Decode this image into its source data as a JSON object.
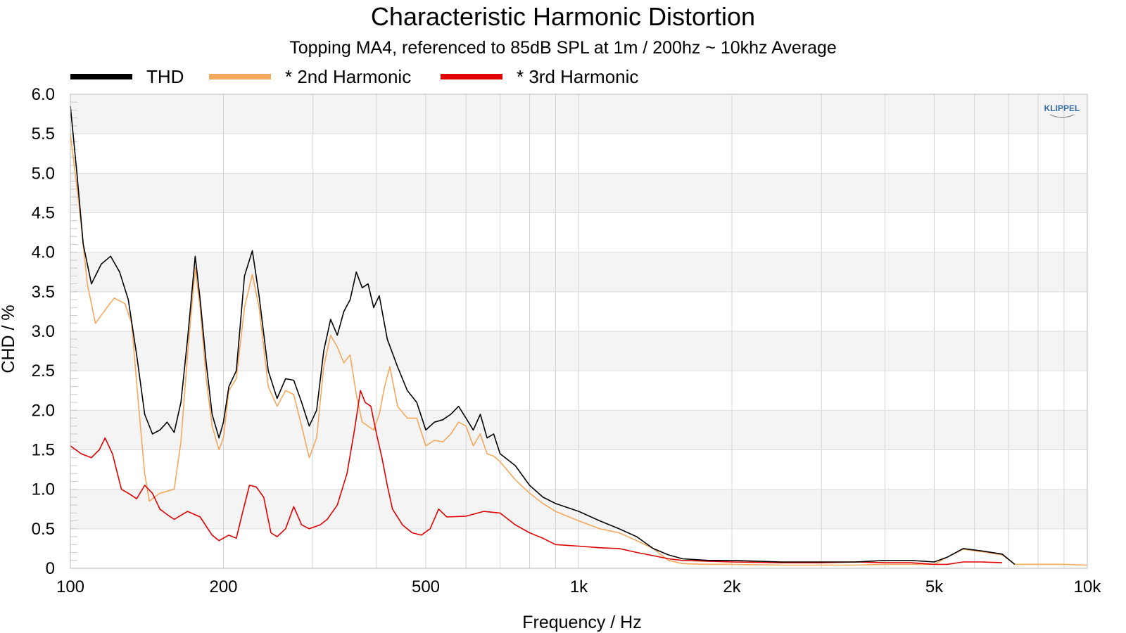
{
  "chart_data": {
    "type": "line",
    "title": "Characteristic Harmonic Distortion",
    "subtitle": "Topping MA4, referenced to 85dB SPL at 1m / 200hz ~ 10khz Average",
    "xlabel": "Frequency / Hz",
    "ylabel": "CHD / %",
    "x_scale": "log",
    "xlim": [
      100,
      10000
    ],
    "ylim": [
      0,
      6.0
    ],
    "x_ticks": [
      {
        "value": 100,
        "label": "100"
      },
      {
        "value": 200,
        "label": "200"
      },
      {
        "value": 500,
        "label": "500"
      },
      {
        "value": 1000,
        "label": "1k"
      },
      {
        "value": 2000,
        "label": "2k"
      },
      {
        "value": 5000,
        "label": "5k"
      },
      {
        "value": 10000,
        "label": "10k"
      }
    ],
    "y_ticks": [
      {
        "value": 0,
        "label": "0"
      },
      {
        "value": 0.5,
        "label": "0.5"
      },
      {
        "value": 1.0,
        "label": "1.0"
      },
      {
        "value": 1.5,
        "label": "1.5"
      },
      {
        "value": 2.0,
        "label": "2.0"
      },
      {
        "value": 2.5,
        "label": "2.5"
      },
      {
        "value": 3.0,
        "label": "3.0"
      },
      {
        "value": 3.5,
        "label": "3.5"
      },
      {
        "value": 4.0,
        "label": "4.0"
      },
      {
        "value": 4.5,
        "label": "4.5"
      },
      {
        "value": 5.0,
        "label": "5.0"
      },
      {
        "value": 5.5,
        "label": "5.5"
      },
      {
        "value": 6.0,
        "label": "6.0"
      }
    ],
    "grid": true,
    "legend_position": "top-left",
    "badge": "KLIPPEL",
    "series": [
      {
        "name": "THD",
        "color": "#000000",
        "points": [
          [
            100,
            5.85
          ],
          [
            103,
            5.0
          ],
          [
            106,
            4.1
          ],
          [
            110,
            3.6
          ],
          [
            115,
            3.85
          ],
          [
            120,
            3.95
          ],
          [
            125,
            3.75
          ],
          [
            130,
            3.4
          ],
          [
            135,
            2.7
          ],
          [
            140,
            1.95
          ],
          [
            145,
            1.7
          ],
          [
            150,
            1.75
          ],
          [
            155,
            1.85
          ],
          [
            160,
            1.72
          ],
          [
            165,
            2.1
          ],
          [
            170,
            2.9
          ],
          [
            176,
            3.95
          ],
          [
            180,
            3.4
          ],
          [
            185,
            2.6
          ],
          [
            190,
            1.95
          ],
          [
            196,
            1.65
          ],
          [
            200,
            1.85
          ],
          [
            205,
            2.3
          ],
          [
            212,
            2.5
          ],
          [
            220,
            3.7
          ],
          [
            228,
            4.02
          ],
          [
            235,
            3.45
          ],
          [
            245,
            2.5
          ],
          [
            255,
            2.15
          ],
          [
            265,
            2.4
          ],
          [
            275,
            2.38
          ],
          [
            285,
            2.1
          ],
          [
            295,
            1.8
          ],
          [
            305,
            2.0
          ],
          [
            315,
            2.75
          ],
          [
            325,
            3.15
          ],
          [
            335,
            2.95
          ],
          [
            345,
            3.25
          ],
          [
            355,
            3.4
          ],
          [
            365,
            3.75
          ],
          [
            375,
            3.55
          ],
          [
            385,
            3.6
          ],
          [
            395,
            3.3
          ],
          [
            405,
            3.45
          ],
          [
            420,
            2.9
          ],
          [
            440,
            2.55
          ],
          [
            460,
            2.25
          ],
          [
            480,
            2.1
          ],
          [
            500,
            1.75
          ],
          [
            520,
            1.85
          ],
          [
            540,
            1.88
          ],
          [
            560,
            1.95
          ],
          [
            580,
            2.05
          ],
          [
            600,
            1.9
          ],
          [
            620,
            1.75
          ],
          [
            640,
            1.95
          ],
          [
            660,
            1.65
          ],
          [
            680,
            1.7
          ],
          [
            700,
            1.45
          ],
          [
            750,
            1.3
          ],
          [
            800,
            1.05
          ],
          [
            850,
            0.9
          ],
          [
            900,
            0.82
          ],
          [
            1000,
            0.72
          ],
          [
            1100,
            0.6
          ],
          [
            1200,
            0.5
          ],
          [
            1300,
            0.4
          ],
          [
            1400,
            0.25
          ],
          [
            1500,
            0.17
          ],
          [
            1600,
            0.12
          ],
          [
            1800,
            0.1
          ],
          [
            2000,
            0.1
          ],
          [
            2500,
            0.08
          ],
          [
            3000,
            0.08
          ],
          [
            3500,
            0.08
          ],
          [
            4000,
            0.1
          ],
          [
            4500,
            0.1
          ],
          [
            5000,
            0.08
          ],
          [
            5300,
            0.14
          ],
          [
            5700,
            0.25
          ],
          [
            6200,
            0.22
          ],
          [
            6800,
            0.18
          ],
          [
            7200,
            0.05
          ]
        ]
      },
      {
        "name": "* 2nd Harmonic",
        "color": "#f5a85c",
        "points": [
          [
            100,
            5.5
          ],
          [
            104,
            4.6
          ],
          [
            108,
            3.6
          ],
          [
            112,
            3.1
          ],
          [
            118,
            3.3
          ],
          [
            122,
            3.42
          ],
          [
            128,
            3.35
          ],
          [
            132,
            3.1
          ],
          [
            136,
            2.1
          ],
          [
            140,
            1.2
          ],
          [
            143,
            0.85
          ],
          [
            150,
            0.95
          ],
          [
            160,
            1.0
          ],
          [
            165,
            1.6
          ],
          [
            170,
            2.7
          ],
          [
            176,
            3.8
          ],
          [
            180,
            3.3
          ],
          [
            185,
            2.4
          ],
          [
            190,
            1.8
          ],
          [
            196,
            1.5
          ],
          [
            200,
            1.65
          ],
          [
            205,
            2.25
          ],
          [
            212,
            2.4
          ],
          [
            220,
            3.3
          ],
          [
            228,
            3.72
          ],
          [
            235,
            3.3
          ],
          [
            245,
            2.3
          ],
          [
            255,
            2.05
          ],
          [
            265,
            2.25
          ],
          [
            275,
            2.2
          ],
          [
            285,
            1.8
          ],
          [
            295,
            1.4
          ],
          [
            305,
            1.65
          ],
          [
            315,
            2.55
          ],
          [
            325,
            2.95
          ],
          [
            335,
            2.8
          ],
          [
            345,
            2.6
          ],
          [
            355,
            2.7
          ],
          [
            365,
            2.2
          ],
          [
            375,
            1.85
          ],
          [
            385,
            1.8
          ],
          [
            395,
            1.75
          ],
          [
            405,
            1.95
          ],
          [
            415,
            2.3
          ],
          [
            425,
            2.55
          ],
          [
            440,
            2.05
          ],
          [
            460,
            1.9
          ],
          [
            480,
            1.9
          ],
          [
            500,
            1.55
          ],
          [
            520,
            1.62
          ],
          [
            540,
            1.6
          ],
          [
            560,
            1.7
          ],
          [
            580,
            1.85
          ],
          [
            600,
            1.8
          ],
          [
            620,
            1.55
          ],
          [
            640,
            1.7
          ],
          [
            660,
            1.45
          ],
          [
            680,
            1.42
          ],
          [
            700,
            1.35
          ],
          [
            750,
            1.12
          ],
          [
            800,
            0.95
          ],
          [
            850,
            0.82
          ],
          [
            900,
            0.72
          ],
          [
            1000,
            0.6
          ],
          [
            1100,
            0.5
          ],
          [
            1200,
            0.45
          ],
          [
            1300,
            0.35
          ],
          [
            1400,
            0.25
          ],
          [
            1500,
            0.1
          ],
          [
            1600,
            0.06
          ],
          [
            1800,
            0.05
          ],
          [
            2000,
            0.05
          ],
          [
            2500,
            0.04
          ],
          [
            3000,
            0.04
          ],
          [
            3500,
            0.04
          ],
          [
            4000,
            0.05
          ],
          [
            4500,
            0.05
          ],
          [
            5000,
            0.05
          ],
          [
            5300,
            0.14
          ],
          [
            5700,
            0.24
          ],
          [
            6200,
            0.21
          ],
          [
            6800,
            0.17
          ],
          [
            7200,
            0.05
          ],
          [
            8000,
            0.05
          ],
          [
            9000,
            0.05
          ],
          [
            10000,
            0.04
          ]
        ]
      },
      {
        "name": "* 3rd Harmonic",
        "color": "#e00000",
        "points": [
          [
            100,
            1.55
          ],
          [
            105,
            1.45
          ],
          [
            110,
            1.4
          ],
          [
            114,
            1.5
          ],
          [
            117,
            1.65
          ],
          [
            121,
            1.45
          ],
          [
            126,
            1.0
          ],
          [
            130,
            0.95
          ],
          [
            135,
            0.88
          ],
          [
            140,
            1.05
          ],
          [
            145,
            0.95
          ],
          [
            150,
            0.75
          ],
          [
            155,
            0.68
          ],
          [
            160,
            0.62
          ],
          [
            170,
            0.72
          ],
          [
            180,
            0.65
          ],
          [
            190,
            0.42
          ],
          [
            196,
            0.35
          ],
          [
            205,
            0.42
          ],
          [
            212,
            0.38
          ],
          [
            218,
            0.7
          ],
          [
            225,
            1.05
          ],
          [
            232,
            1.03
          ],
          [
            240,
            0.9
          ],
          [
            248,
            0.45
          ],
          [
            255,
            0.4
          ],
          [
            265,
            0.5
          ],
          [
            275,
            0.78
          ],
          [
            285,
            0.55
          ],
          [
            295,
            0.5
          ],
          [
            310,
            0.55
          ],
          [
            320,
            0.62
          ],
          [
            335,
            0.8
          ],
          [
            350,
            1.2
          ],
          [
            362,
            1.75
          ],
          [
            372,
            2.25
          ],
          [
            380,
            2.1
          ],
          [
            390,
            2.05
          ],
          [
            400,
            1.7
          ],
          [
            410,
            1.4
          ],
          [
            420,
            1.05
          ],
          [
            430,
            0.75
          ],
          [
            450,
            0.55
          ],
          [
            470,
            0.45
          ],
          [
            490,
            0.42
          ],
          [
            510,
            0.5
          ],
          [
            530,
            0.75
          ],
          [
            550,
            0.65
          ],
          [
            600,
            0.66
          ],
          [
            650,
            0.72
          ],
          [
            700,
            0.7
          ],
          [
            750,
            0.55
          ],
          [
            800,
            0.45
          ],
          [
            850,
            0.38
          ],
          [
            900,
            0.3
          ],
          [
            1000,
            0.28
          ],
          [
            1100,
            0.26
          ],
          [
            1200,
            0.25
          ],
          [
            1300,
            0.2
          ],
          [
            1400,
            0.16
          ],
          [
            1500,
            0.12
          ],
          [
            1600,
            0.1
          ],
          [
            1800,
            0.09
          ],
          [
            2000,
            0.08
          ],
          [
            2500,
            0.07
          ],
          [
            3000,
            0.07
          ],
          [
            3500,
            0.08
          ],
          [
            4000,
            0.07
          ],
          [
            4500,
            0.07
          ],
          [
            5000,
            0.05
          ],
          [
            5300,
            0.05
          ],
          [
            5700,
            0.08
          ],
          [
            6200,
            0.08
          ],
          [
            6800,
            0.07
          ]
        ]
      }
    ]
  }
}
